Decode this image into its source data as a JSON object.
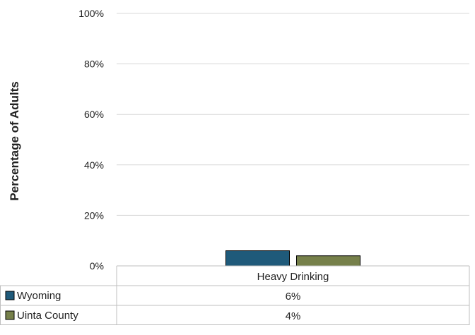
{
  "chart_data": {
    "type": "bar",
    "ylabel": "Percentage of Adults",
    "ylim": [
      0,
      100
    ],
    "yticks": [
      "0%",
      "20%",
      "40%",
      "60%",
      "80%",
      "100%"
    ],
    "categories": [
      "Heavy Drinking"
    ],
    "series": [
      {
        "name": "Wyoming",
        "values": [
          6
        ],
        "labels": [
          "6%"
        ],
        "color": "#1f5a7a"
      },
      {
        "name": "Uinta County",
        "values": [
          4
        ],
        "labels": [
          "4%"
        ],
        "color": "#76804a"
      }
    ],
    "grid": true,
    "legend": "data-table"
  }
}
